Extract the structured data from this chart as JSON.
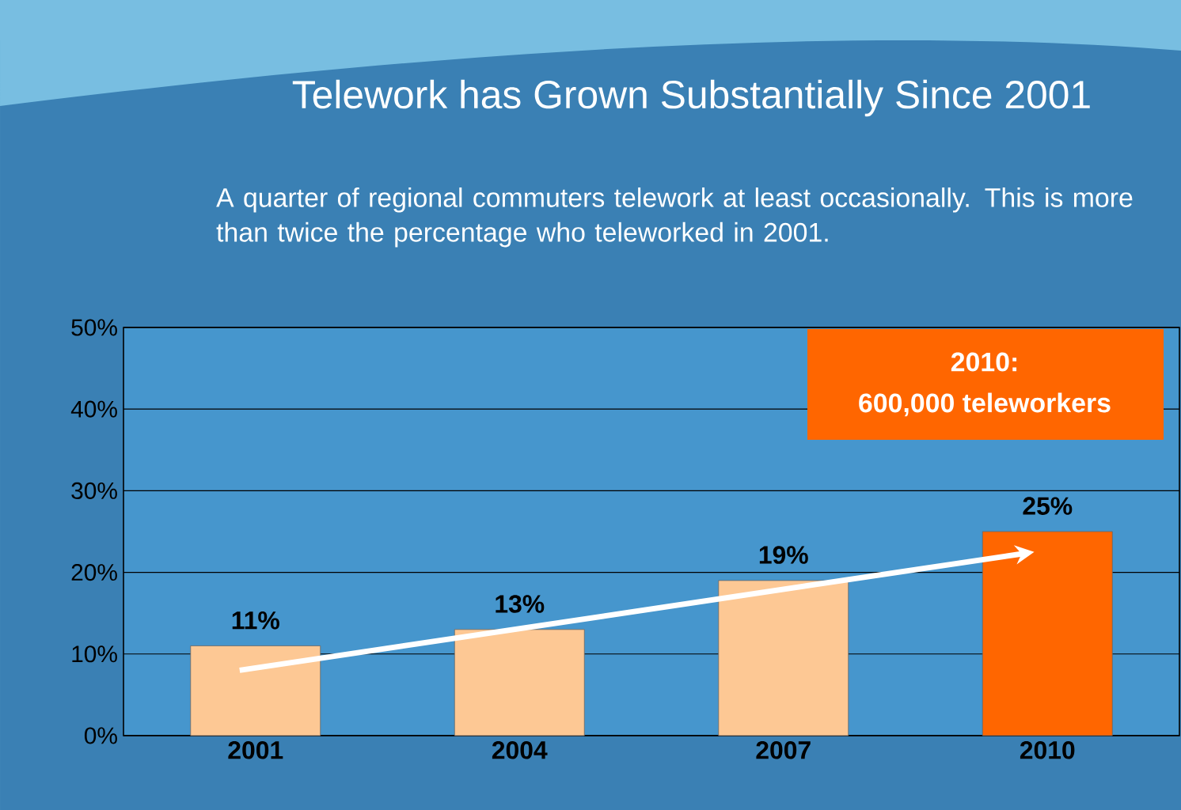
{
  "chart_data": {
    "type": "bar",
    "title": "Telework has Grown Substantially Since 2001",
    "subtitle": "A quarter of regional commuters telework at least occasionally.  This is more than twice the percentage who teleworked in 2001.",
    "categories": [
      "2001",
      "2004",
      "2007",
      "2010"
    ],
    "values": [
      11,
      13,
      19,
      25
    ],
    "colors": [
      "#fdc894",
      "#fdc894",
      "#fdc894",
      "#ff6600"
    ],
    "value_labels": [
      "11%",
      "13%",
      "19%",
      "25%"
    ],
    "ylim": [
      0,
      50
    ],
    "yticks": [
      {
        "value": 0,
        "label": "0%"
      },
      {
        "value": 10,
        "label": "10%"
      },
      {
        "value": 20,
        "label": "20%"
      },
      {
        "value": 30,
        "label": "30%"
      },
      {
        "value": 40,
        "label": "40%"
      },
      {
        "value": 50,
        "label": "50%"
      }
    ],
    "grid": "y",
    "annotations": [
      "2010:",
      "600,000 teleworkers"
    ]
  }
}
